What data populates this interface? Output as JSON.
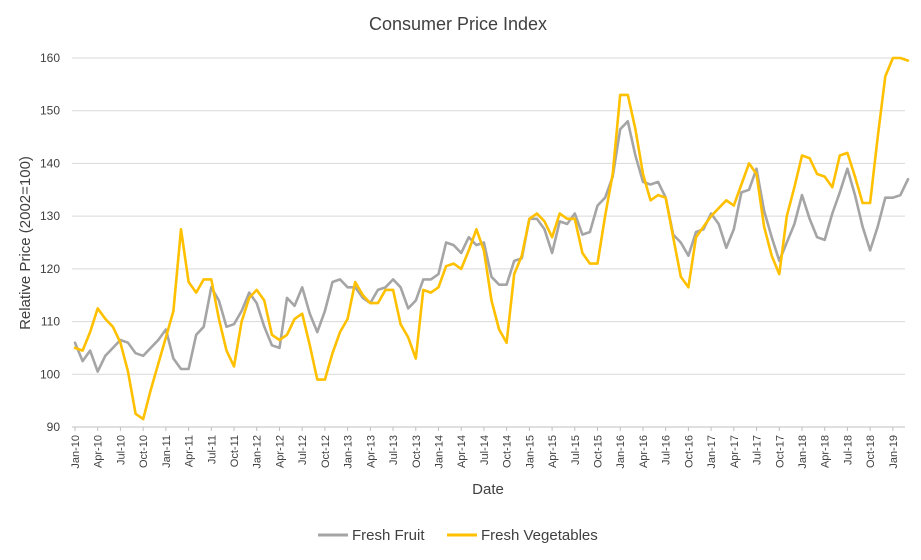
{
  "chart_data": {
    "type": "line",
    "title": "Consumer Price Index",
    "xlabel": "Date",
    "ylabel": "Relative Price (2002=100)",
    "ylim": [
      90,
      160
    ],
    "yticks": [
      "90",
      "100",
      "110",
      "120",
      "130",
      "140",
      "150",
      "160"
    ],
    "grid": true,
    "legend_position": "bottom",
    "x": [
      "Jan-10",
      "Feb-10",
      "Mar-10",
      "Apr-10",
      "May-10",
      "Jun-10",
      "Jul-10",
      "Aug-10",
      "Sep-10",
      "Oct-10",
      "Nov-10",
      "Dec-10",
      "Jan-11",
      "Feb-11",
      "Mar-11",
      "Apr-11",
      "May-11",
      "Jun-11",
      "Jul-11",
      "Aug-11",
      "Sep-11",
      "Oct-11",
      "Nov-11",
      "Dec-11",
      "Jan-12",
      "Feb-12",
      "Mar-12",
      "Apr-12",
      "May-12",
      "Jun-12",
      "Jul-12",
      "Aug-12",
      "Sep-12",
      "Oct-12",
      "Nov-12",
      "Dec-12",
      "Jan-13",
      "Feb-13",
      "Mar-13",
      "Apr-13",
      "May-13",
      "Jun-13",
      "Jul-13",
      "Aug-13",
      "Sep-13",
      "Oct-13",
      "Nov-13",
      "Dec-13",
      "Jan-14",
      "Feb-14",
      "Mar-14",
      "Apr-14",
      "May-14",
      "Jun-14",
      "Jul-14",
      "Aug-14",
      "Sep-14",
      "Oct-14",
      "Nov-14",
      "Dec-14",
      "Jan-15",
      "Feb-15",
      "Mar-15",
      "Apr-15",
      "May-15",
      "Jun-15",
      "Jul-15",
      "Aug-15",
      "Sep-15",
      "Oct-15",
      "Nov-15",
      "Dec-15",
      "Jan-16",
      "Feb-16",
      "Mar-16",
      "Apr-16",
      "May-16",
      "Jun-16",
      "Jul-16",
      "Aug-16",
      "Sep-16",
      "Oct-16",
      "Nov-16",
      "Dec-16",
      "Jan-17",
      "Feb-17",
      "Mar-17",
      "Apr-17",
      "May-17",
      "Jun-17",
      "Jul-17",
      "Aug-17",
      "Sep-17",
      "Oct-17",
      "Nov-17",
      "Dec-17",
      "Jan-18",
      "Feb-18",
      "Mar-18",
      "Apr-18",
      "May-18",
      "Jun-18",
      "Jul-18",
      "Aug-18",
      "Sep-18",
      "Oct-18",
      "Nov-18",
      "Dec-18",
      "Jan-19",
      "Feb-19",
      "Mar-19"
    ],
    "xtick_labels": [
      "Jan-10",
      "Apr-10",
      "Jul-10",
      "Oct-10",
      "Jan-11",
      "Apr-11",
      "Jul-11",
      "Oct-11",
      "Jan-12",
      "Apr-12",
      "Jul-12",
      "Oct-12",
      "Jan-13",
      "Apr-13",
      "Jul-13",
      "Oct-13",
      "Jan-14",
      "Apr-14",
      "Jul-14",
      "Oct-14",
      "Jan-15",
      "Apr-15",
      "Jul-15",
      "Oct-15",
      "Jan-16",
      "Apr-16",
      "Jul-16",
      "Oct-16",
      "Jan-17",
      "Apr-17",
      "Jul-17",
      "Oct-17",
      "Jan-18",
      "Apr-18",
      "Jul-18",
      "Oct-18",
      "Jan-19"
    ],
    "series": [
      {
        "name": "Fresh Fruit",
        "color": "#a5a5a5",
        "values": [
          106,
          102.5,
          104.5,
          100.5,
          103.5,
          105,
          106.5,
          106,
          104,
          103.5,
          105,
          106.5,
          108.5,
          103,
          101,
          101,
          107.5,
          109,
          116.5,
          114,
          109,
          109.5,
          112,
          115.5,
          113.5,
          109,
          105.5,
          105,
          114.5,
          113,
          116.5,
          111.5,
          108,
          112,
          117.5,
          118,
          116.5,
          116.5,
          114.5,
          113.5,
          116,
          116.5,
          118,
          116.5,
          112.5,
          114,
          118,
          118,
          119,
          125,
          124.5,
          123,
          126,
          124.5,
          125,
          118.5,
          117,
          117,
          121.5,
          122,
          129.5,
          129.5,
          127.5,
          123,
          129,
          128.5,
          130.5,
          126.5,
          127,
          132,
          133.5,
          137.5,
          146.5,
          148,
          141.5,
          136.5,
          136,
          136.5,
          133.5,
          126.5,
          125,
          122.5,
          127,
          127.5,
          130.5,
          128.5,
          124,
          127.5,
          134.5,
          135,
          139,
          131,
          126,
          121.5,
          125,
          128.5,
          134,
          129.5,
          126,
          125.5,
          130.5,
          134.5,
          139,
          134,
          128,
          123.5,
          128,
          133.5,
          133.5,
          134,
          137
        ]
      },
      {
        "name": "Fresh Vegetables",
        "color": "#ffc000",
        "values": [
          105,
          104.5,
          108,
          112.5,
          110.5,
          109,
          106,
          100.5,
          92.5,
          91.5,
          97,
          102,
          107,
          112,
          127.5,
          117.5,
          115.5,
          118,
          118,
          110.5,
          104.5,
          101.5,
          110,
          114.5,
          116,
          114,
          107.5,
          106.5,
          107.5,
          110.5,
          111.5,
          105.5,
          99,
          99,
          104,
          108,
          110.5,
          117.5,
          115,
          113.5,
          113.5,
          116,
          116,
          109.5,
          107,
          103,
          116,
          115.5,
          116.5,
          120.5,
          121,
          120,
          123.5,
          127.5,
          123.5,
          114,
          108.5,
          106,
          119,
          122.5,
          129.5,
          130.5,
          129,
          126,
          130.5,
          129.5,
          129.5,
          123,
          121,
          121,
          130,
          138,
          153,
          153,
          146.5,
          138,
          133,
          134,
          133.5,
          126,
          118.5,
          116.5,
          126,
          128,
          130,
          131.5,
          133,
          132,
          136,
          140,
          138,
          128,
          122.5,
          119,
          130,
          135.5,
          141.5,
          141,
          138,
          137.5,
          135.5,
          141.5,
          142,
          137.5,
          132.5,
          132.5,
          145,
          156.5,
          160,
          160,
          159.5
        ]
      }
    ]
  }
}
